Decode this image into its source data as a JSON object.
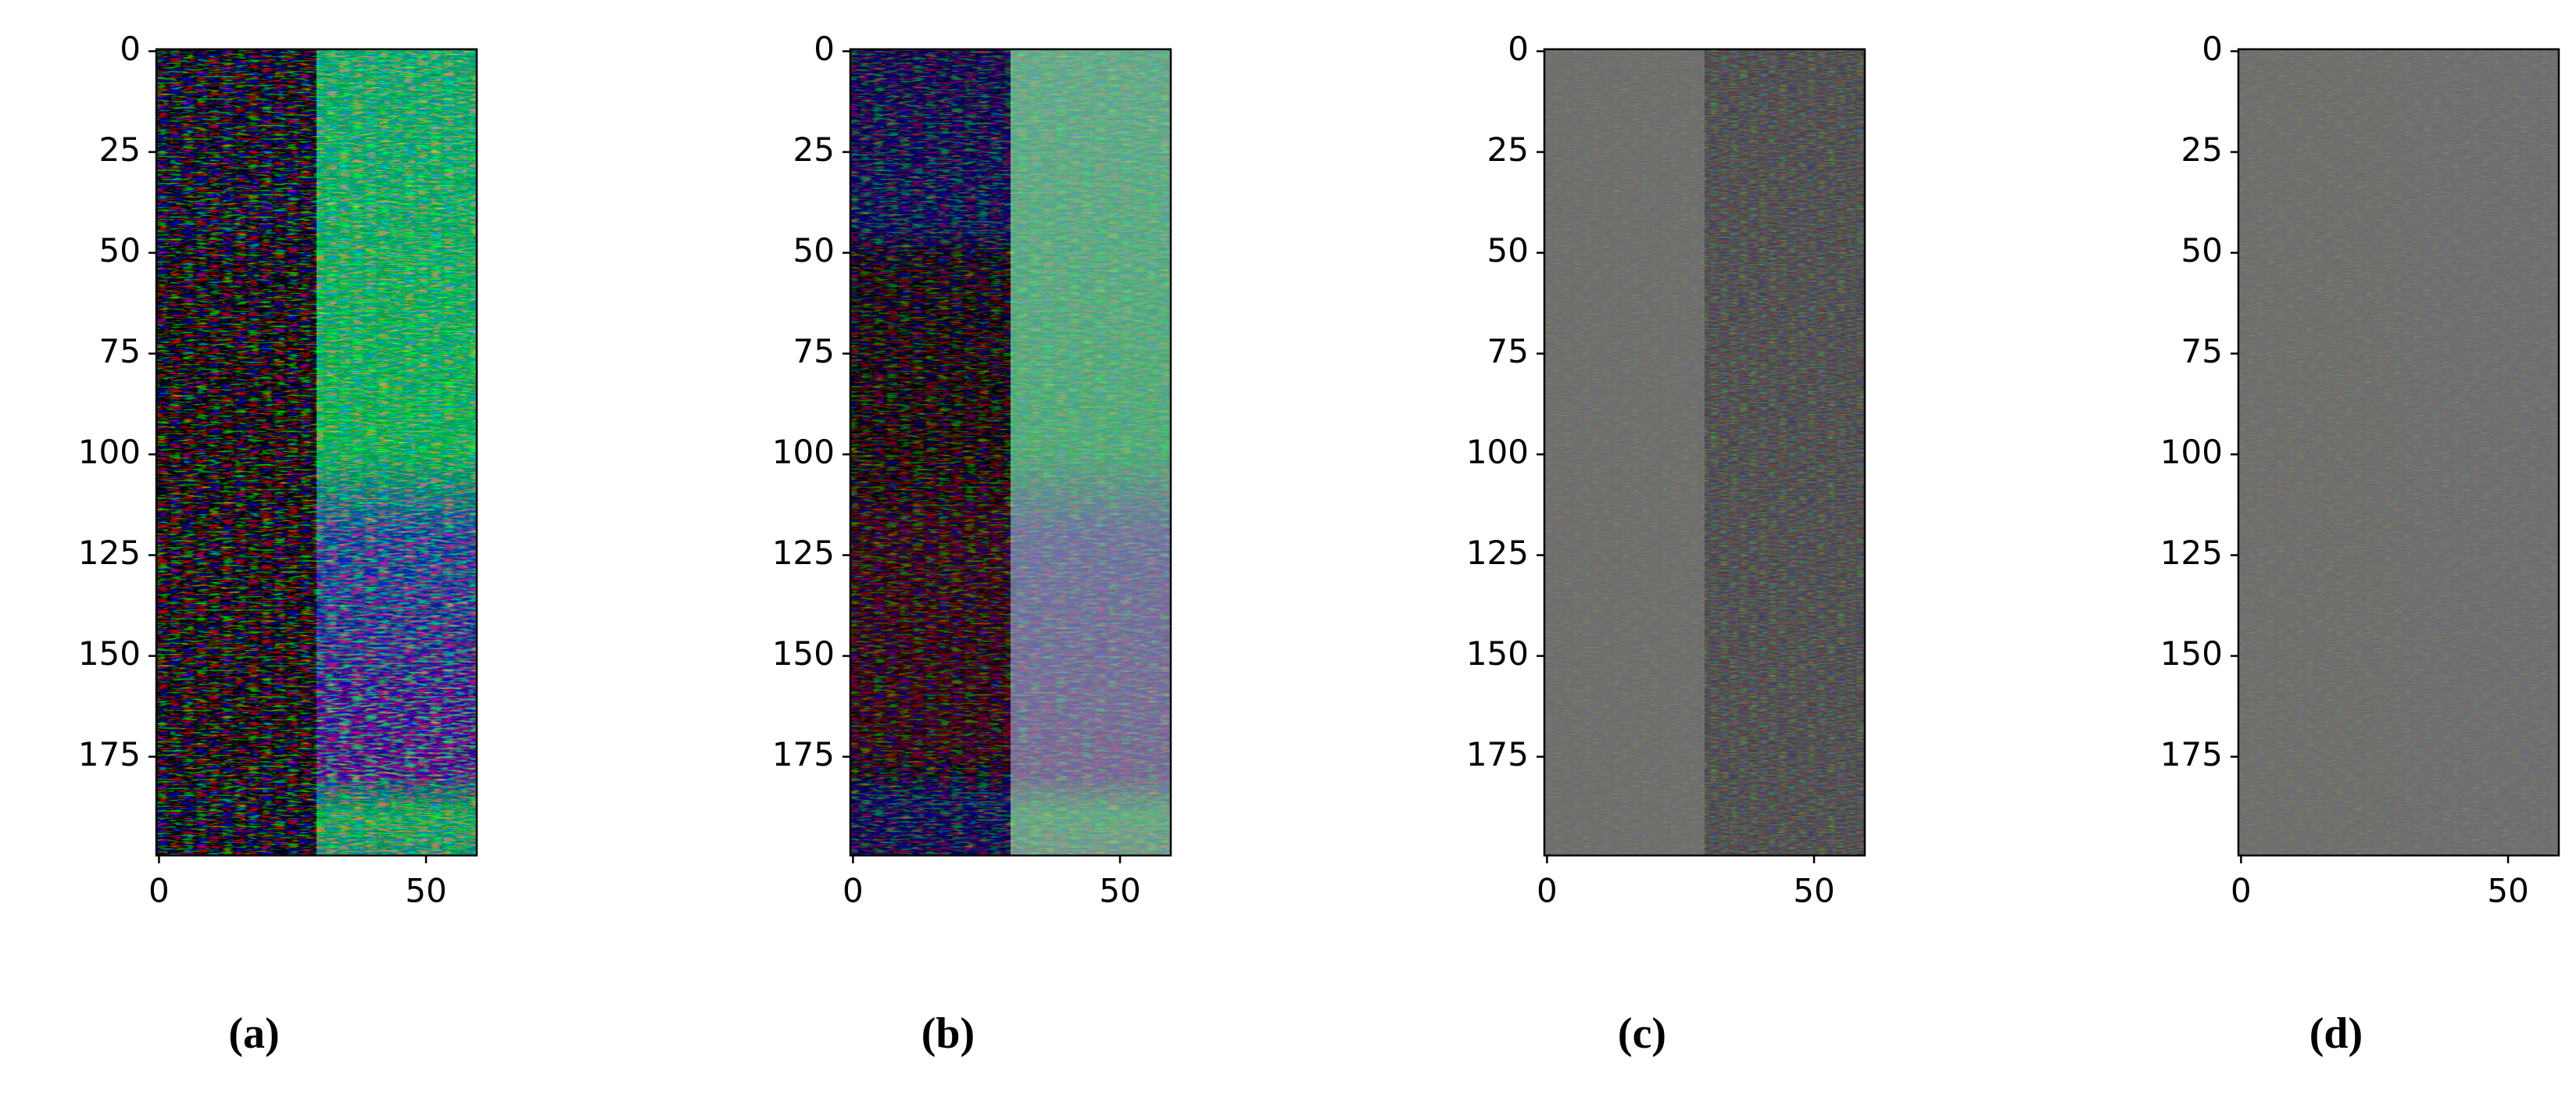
{
  "chart_data": [
    {
      "type": "image",
      "caption": "(a)",
      "xlim": [
        -0.5,
        59.5
      ],
      "ylim": [
        -0.5,
        199.5
      ],
      "y_inverted": true,
      "xticks": [
        0,
        50
      ],
      "yticks": [
        0,
        25,
        50,
        75,
        100,
        125,
        150,
        175
      ]
    },
    {
      "type": "image",
      "caption": "(b)",
      "xlim": [
        -0.5,
        59.5
      ],
      "ylim": [
        -0.5,
        199.5
      ],
      "y_inverted": true,
      "xticks": [
        0,
        50
      ],
      "yticks": [
        0,
        25,
        50,
        75,
        100,
        125,
        150,
        175
      ]
    },
    {
      "type": "image",
      "caption": "(c)",
      "xlim": [
        -0.5,
        59.5
      ],
      "ylim": [
        -0.5,
        199.5
      ],
      "y_inverted": true,
      "xticks": [
        0,
        50
      ],
      "yticks": [
        0,
        25,
        50,
        75,
        100,
        125,
        150,
        175
      ]
    },
    {
      "type": "image",
      "caption": "(d)",
      "xlim": [
        -0.5,
        59.5
      ],
      "ylim": [
        -0.5,
        199.5
      ],
      "y_inverted": true,
      "xticks": [
        0,
        50
      ],
      "yticks": [
        0,
        25,
        50,
        75,
        100,
        125,
        150,
        175
      ]
    }
  ]
}
